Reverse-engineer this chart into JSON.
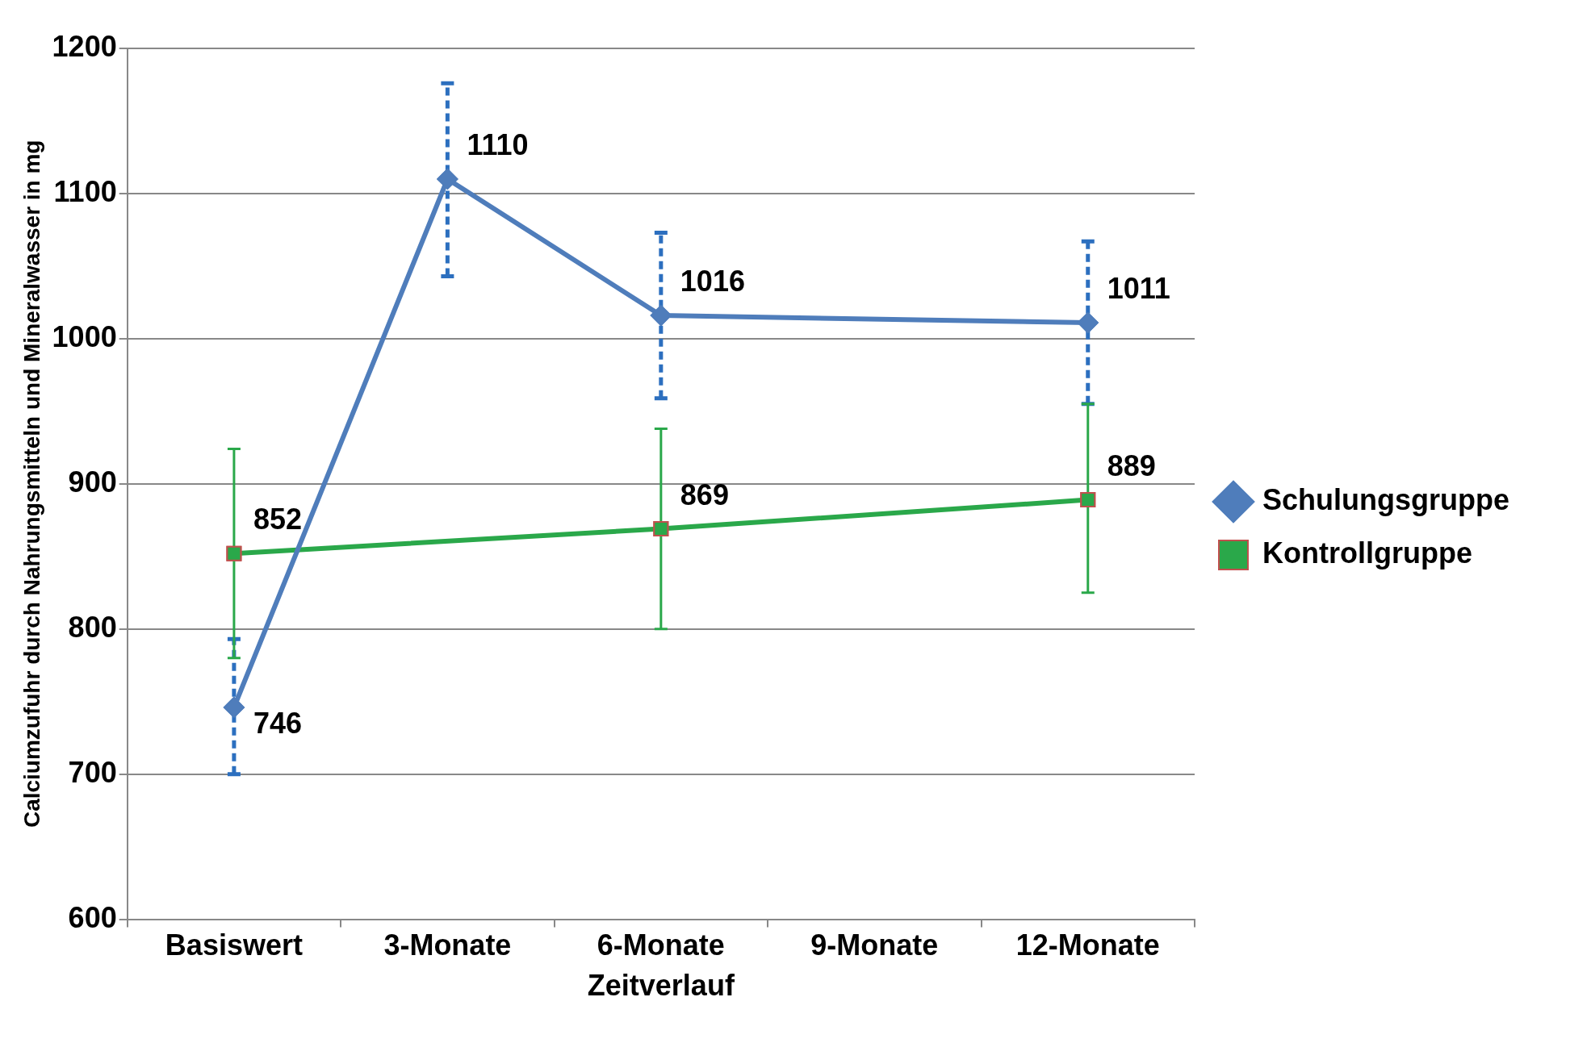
{
  "chart_data": {
    "type": "line",
    "xlabel": "Zeitverlauf",
    "ylabel": "Calciumzufuhr durch Nahrungsmitteln und Mineralwasser in mg",
    "categories": [
      "Basiswert",
      "3-Monate",
      "6-Monate",
      "9-Monate",
      "12-Monate"
    ],
    "series": [
      {
        "name": "Schulungsgruppe",
        "color": "#4f7dbb",
        "marker": "diamond",
        "values": [
          746,
          1110,
          1016,
          null,
          1011
        ],
        "errors": [
          [
            700,
            793
          ],
          [
            1043,
            1176
          ],
          [
            959,
            1073
          ],
          null,
          [
            955,
            1067
          ]
        ]
      },
      {
        "name": "Kontrollgruppe",
        "color": "#2aa84a",
        "marker": "square",
        "values": [
          852,
          null,
          869,
          null,
          889
        ],
        "errors": [
          [
            780,
            924
          ],
          null,
          [
            800,
            938
          ],
          null,
          [
            825,
            955
          ]
        ]
      }
    ],
    "ylim": [
      600,
      1200
    ],
    "yticks": [
      600,
      700,
      800,
      900,
      1000,
      1100,
      1200
    ],
    "grid": "y",
    "legend": "right",
    "data_labels": true,
    "line_style": "solid"
  }
}
